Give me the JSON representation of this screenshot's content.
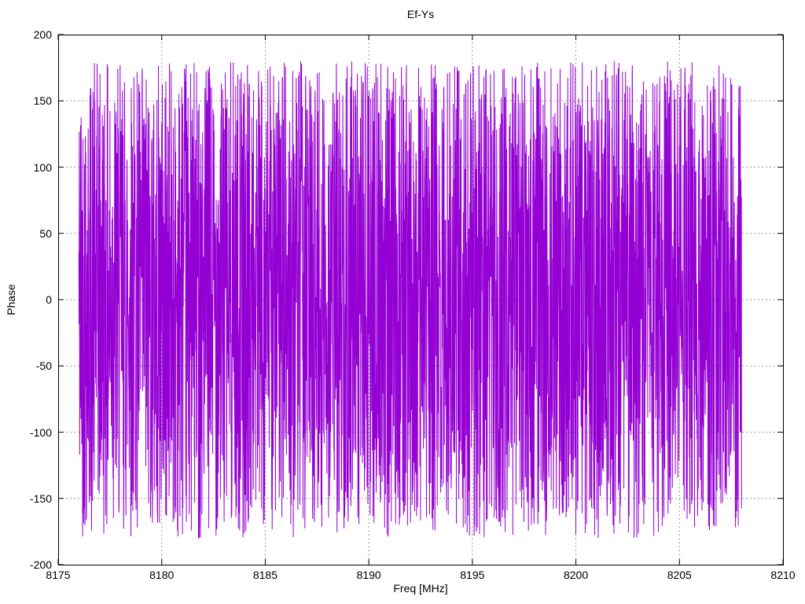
{
  "page": {
    "background_color": "#ffffff",
    "text_color": "#000000"
  },
  "chart_data": {
    "type": "line",
    "title": "Ef-Ys",
    "xlabel": "Freq [MHz]",
    "ylabel": "Phase",
    "xlim": [
      8175,
      8210
    ],
    "ylim": [
      -200,
      200
    ],
    "xticks": [
      8175,
      8180,
      8185,
      8190,
      8195,
      8200,
      8205,
      8210
    ],
    "yticks": [
      -200,
      -150,
      -100,
      -50,
      0,
      50,
      100,
      150,
      200
    ],
    "grid": true,
    "grid_style": "dotted",
    "grid_color": "#9a9a9a",
    "axis_color": "#000000",
    "legend": "none",
    "series": [
      {
        "name": "Ef-Ys",
        "color": "#9400D3",
        "x_start": 8176.0,
        "x_end": 8208.0,
        "points": 3200,
        "y_min": -180,
        "y_max": 180,
        "seed": 42,
        "description": "Dense wrapped interferometric phase noise: values uniformly fill -180 to +180 degrees across 8176-8208 MHz, rendered as a connected line that forms a nearly solid violet band with thin white gaps and spikes reaching +/-180"
      }
    ]
  }
}
